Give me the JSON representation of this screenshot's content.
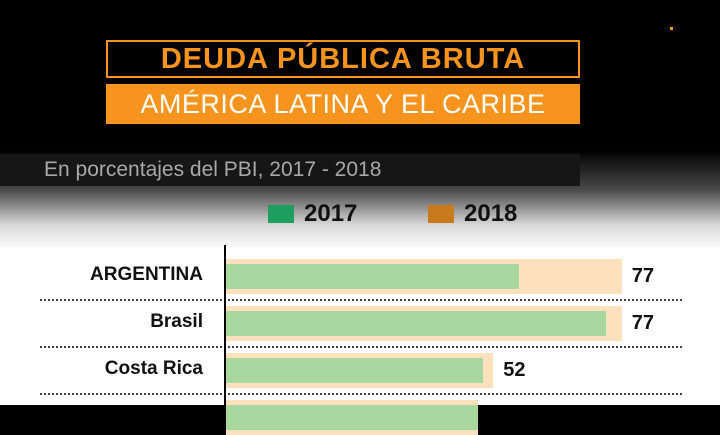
{
  "header": {
    "title": "DEUDA PÚBLICA BRUTA",
    "subtitle": "AMÉRICA LATINA Y EL CARIBE",
    "units": "En porcentajes del PBI,  2017 - 2018"
  },
  "colors": {
    "accent": "#f7941d",
    "series_2017_legend": "#1e9e5e",
    "series_2018_legend": "#c97a1c",
    "bar_2017": "#a8d8a0",
    "bar_2018": "#fde1bd"
  },
  "chart_data": {
    "type": "bar",
    "orientation": "horizontal",
    "title": "DEUDA PÚBLICA BRUTA",
    "subtitle": "AMÉRICA LATINA Y EL CARIBE",
    "unit_note": "En porcentajes del PBI,  2017 - 2018",
    "categories": [
      "ARGENTINA",
      "Brasil",
      "Costa Rica",
      ""
    ],
    "series": [
      {
        "name": "2017",
        "values": [
          57,
          74,
          50,
          49
        ]
      },
      {
        "name": "2018",
        "values": [
          77,
          77,
          52,
          49
        ]
      }
    ],
    "data_labels": [
      "77",
      "77",
      "52",
      ""
    ],
    "xlim": [
      0,
      100
    ],
    "legend_position": "top",
    "grid": false
  }
}
